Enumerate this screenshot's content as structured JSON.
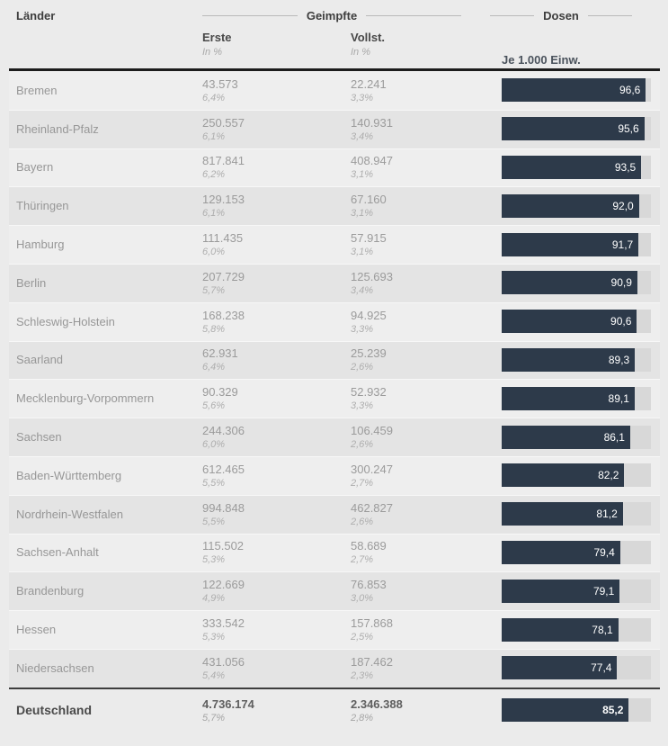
{
  "header": {
    "laender": "Länder",
    "geimpfte": "Geimpfte",
    "dosen": "Dosen",
    "erste": "Erste",
    "vollst": "Vollst.",
    "in_percent": "In %",
    "je_1000": "Je 1.000 Einw."
  },
  "colors": {
    "bar": "#2d3a4a",
    "bar_track": "#d8d8d8",
    "row_even": "#eeeeee",
    "row_odd": "#e4e4e4",
    "page_bg": "#ebebeb",
    "header_rule": "#1c1c1c",
    "total_rule": "#3d3d3d"
  },
  "rows": [
    {
      "name": "Bremen",
      "erste": "43.573",
      "erste_pct": "6,4%",
      "vollst": "22.241",
      "vollst_pct": "3,3%",
      "dosen": "96,6",
      "dosen_value": 96.6
    },
    {
      "name": "Rheinland-Pfalz",
      "erste": "250.557",
      "erste_pct": "6,1%",
      "vollst": "140.931",
      "vollst_pct": "3,4%",
      "dosen": "95,6",
      "dosen_value": 95.6
    },
    {
      "name": "Bayern",
      "erste": "817.841",
      "erste_pct": "6,2%",
      "vollst": "408.947",
      "vollst_pct": "3,1%",
      "dosen": "93,5",
      "dosen_value": 93.5
    },
    {
      "name": "Thüringen",
      "erste": "129.153",
      "erste_pct": "6,1%",
      "vollst": "67.160",
      "vollst_pct": "3,1%",
      "dosen": "92,0",
      "dosen_value": 92.0
    },
    {
      "name": "Hamburg",
      "erste": "111.435",
      "erste_pct": "6,0%",
      "vollst": "57.915",
      "vollst_pct": "3,1%",
      "dosen": "91,7",
      "dosen_value": 91.7
    },
    {
      "name": "Berlin",
      "erste": "207.729",
      "erste_pct": "5,7%",
      "vollst": "125.693",
      "vollst_pct": "3,4%",
      "dosen": "90,9",
      "dosen_value": 90.9
    },
    {
      "name": "Schleswig-Holstein",
      "erste": "168.238",
      "erste_pct": "5,8%",
      "vollst": "94.925",
      "vollst_pct": "3,3%",
      "dosen": "90,6",
      "dosen_value": 90.6
    },
    {
      "name": "Saarland",
      "erste": "62.931",
      "erste_pct": "6,4%",
      "vollst": "25.239",
      "vollst_pct": "2,6%",
      "dosen": "89,3",
      "dosen_value": 89.3
    },
    {
      "name": "Mecklenburg-Vorpommern",
      "erste": "90.329",
      "erste_pct": "5,6%",
      "vollst": "52.932",
      "vollst_pct": "3,3%",
      "dosen": "89,1",
      "dosen_value": 89.1
    },
    {
      "name": "Sachsen",
      "erste": "244.306",
      "erste_pct": "6,0%",
      "vollst": "106.459",
      "vollst_pct": "2,6%",
      "dosen": "86,1",
      "dosen_value": 86.1
    },
    {
      "name": "Baden-Württemberg",
      "erste": "612.465",
      "erste_pct": "5,5%",
      "vollst": "300.247",
      "vollst_pct": "2,7%",
      "dosen": "82,2",
      "dosen_value": 82.2
    },
    {
      "name": "Nordrhein-Westfalen",
      "erste": "994.848",
      "erste_pct": "5,5%",
      "vollst": "462.827",
      "vollst_pct": "2,6%",
      "dosen": "81,2",
      "dosen_value": 81.2
    },
    {
      "name": "Sachsen-Anhalt",
      "erste": "115.502",
      "erste_pct": "5,3%",
      "vollst": "58.689",
      "vollst_pct": "2,7%",
      "dosen": "79,4",
      "dosen_value": 79.4
    },
    {
      "name": "Brandenburg",
      "erste": "122.669",
      "erste_pct": "4,9%",
      "vollst": "76.853",
      "vollst_pct": "3,0%",
      "dosen": "79,1",
      "dosen_value": 79.1
    },
    {
      "name": "Hessen",
      "erste": "333.542",
      "erste_pct": "5,3%",
      "vollst": "157.868",
      "vollst_pct": "2,5%",
      "dosen": "78,1",
      "dosen_value": 78.1
    },
    {
      "name": "Niedersachsen",
      "erste": "431.056",
      "erste_pct": "5,4%",
      "vollst": "187.462",
      "vollst_pct": "2,3%",
      "dosen": "77,4",
      "dosen_value": 77.4
    }
  ],
  "total": {
    "name": "Deutschland",
    "erste": "4.736.174",
    "erste_pct": "5,7%",
    "vollst": "2.346.388",
    "vollst_pct": "2,8%",
    "dosen": "85,2",
    "dosen_value": 85.2
  },
  "chart_data": {
    "type": "table",
    "title": "Geimpfte und Dosen nach Ländern",
    "bar_column": "Dosen je 1.000 Einw.",
    "bar_axis_range": [
      0,
      100
    ],
    "categories": [
      "Bremen",
      "Rheinland-Pfalz",
      "Bayern",
      "Thüringen",
      "Hamburg",
      "Berlin",
      "Schleswig-Holstein",
      "Saarland",
      "Mecklenburg-Vorpommern",
      "Sachsen",
      "Baden-Württemberg",
      "Nordrhein-Westfalen",
      "Sachsen-Anhalt",
      "Brandenburg",
      "Hessen",
      "Niedersachsen"
    ],
    "series": [
      {
        "name": "Geimpfte Erste",
        "values": [
          43573,
          250557,
          817841,
          129153,
          111435,
          207729,
          168238,
          62931,
          90329,
          244306,
          612465,
          994848,
          115502,
          122669,
          333542,
          431056
        ]
      },
      {
        "name": "Geimpfte Erste in %",
        "values": [
          6.4,
          6.1,
          6.2,
          6.1,
          6.0,
          5.7,
          5.8,
          6.4,
          5.6,
          6.0,
          5.5,
          5.5,
          5.3,
          4.9,
          5.3,
          5.4
        ]
      },
      {
        "name": "Geimpfte Vollst.",
        "values": [
          22241,
          140931,
          408947,
          67160,
          57915,
          125693,
          94925,
          25239,
          52932,
          106459,
          300247,
          462827,
          58689,
          76853,
          157868,
          187462
        ]
      },
      {
        "name": "Geimpfte Vollst. in %",
        "values": [
          3.3,
          3.4,
          3.1,
          3.1,
          3.1,
          3.4,
          3.3,
          2.6,
          3.3,
          2.6,
          2.7,
          2.6,
          2.7,
          3.0,
          2.5,
          2.3
        ]
      },
      {
        "name": "Dosen je 1.000 Einw.",
        "values": [
          96.6,
          95.6,
          93.5,
          92.0,
          91.7,
          90.9,
          90.6,
          89.3,
          89.1,
          86.1,
          82.2,
          81.2,
          79.4,
          79.1,
          78.1,
          77.4
        ]
      }
    ],
    "total_row": {
      "name": "Deutschland",
      "erste": 4736174,
      "erste_pct": 5.7,
      "vollst": 2346388,
      "vollst_pct": 2.8,
      "dosen_je_1000": 85.2
    }
  }
}
